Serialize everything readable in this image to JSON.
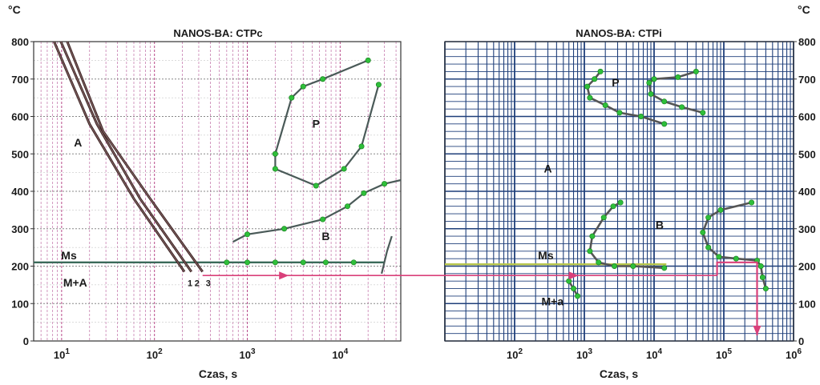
{
  "unit_label": "°C",
  "chart_data": [
    {
      "type": "line",
      "title": "NANOS-BA: CTPc",
      "xlabel": "Czas, s",
      "ylabel": "°C",
      "xscale": "log",
      "xlim": [
        5,
        45000
      ],
      "ylim": [
        0,
        800
      ],
      "x_ticks": [
        {
          "base": "10",
          "exp": "1",
          "v": 10
        },
        {
          "base": "10",
          "exp": "2",
          "v": 100
        },
        {
          "base": "10",
          "exp": "3",
          "v": 1000
        },
        {
          "base": "10",
          "exp": "4",
          "v": 10000
        }
      ],
      "y_ticks": [
        "0",
        "100",
        "200",
        "300",
        "400",
        "500",
        "600",
        "700",
        "800"
      ],
      "grid": true,
      "regions": [
        {
          "label": "A",
          "x": 15,
          "y": 520
        },
        {
          "label": "P",
          "x": 5500,
          "y": 570
        },
        {
          "label": "B",
          "x": 7000,
          "y": 270
        },
        {
          "label": "Ms",
          "x": 12,
          "y": 218
        },
        {
          "label": "M+A",
          "x": 14,
          "y": 145
        }
      ],
      "ms_line": {
        "label": "Ms",
        "y": 210,
        "x_start": 5,
        "x_end": 30000
      },
      "cooling_curves": [
        {
          "name": "1",
          "points": [
            [
              8.3,
              800
            ],
            [
              20,
              580
            ],
            [
              60,
              380
            ],
            [
              210,
              185
            ]
          ]
        },
        {
          "name": "2",
          "points": [
            [
              9.8,
              800
            ],
            [
              24,
              580
            ],
            [
              70,
              380
            ],
            [
              250,
              185
            ]
          ]
        },
        {
          "name": "3",
          "points": [
            [
              11.5,
              800
            ],
            [
              28,
              560
            ],
            [
              90,
              380
            ],
            [
              330,
              185
            ]
          ]
        }
      ],
      "pearlite_curve": [
        [
          20000,
          750
        ],
        [
          6500,
          700
        ],
        [
          4000,
          680
        ],
        [
          3000,
          650
        ],
        [
          2000,
          500
        ],
        [
          2000,
          460
        ],
        [
          5500,
          415
        ],
        [
          11000,
          460
        ],
        [
          17000,
          520
        ],
        [
          26000,
          685
        ]
      ],
      "bainite_curve": [
        [
          700,
          265
        ],
        [
          1000,
          285
        ],
        [
          2500,
          300
        ],
        [
          6500,
          325
        ],
        [
          12000,
          360
        ],
        [
          18000,
          395
        ],
        [
          30000,
          420
        ],
        [
          45000,
          430
        ]
      ],
      "bainite_curve_2": [
        [
          28000,
          180
        ],
        [
          32000,
          240
        ],
        [
          36000,
          280
        ]
      ],
      "ms_points_x": [
        600,
        1000,
        2000,
        4000,
        7000,
        14000
      ],
      "arrow_y": 175
    },
    {
      "type": "line",
      "title": "NANOS-BA: CTPi",
      "xlabel": "Czas, s",
      "ylabel": "°C",
      "xscale": "log",
      "xlim": [
        10,
        1000000
      ],
      "ylim": [
        0,
        800
      ],
      "x_ticks": [
        {
          "base": "10",
          "exp": "2",
          "v": 100
        },
        {
          "base": "10",
          "exp": "3",
          "v": 1000
        },
        {
          "base": "10",
          "exp": "4",
          "v": 10000
        },
        {
          "base": "10",
          "exp": "5",
          "v": 100000
        },
        {
          "base": "10",
          "exp": "6",
          "v": 1000000
        }
      ],
      "y_ticks": [
        "0",
        "100",
        "200",
        "300",
        "400",
        "500",
        "600",
        "700",
        "800"
      ],
      "grid": true,
      "regions": [
        {
          "label": "A",
          "x": 300,
          "y": 450
        },
        {
          "label": "P",
          "x": 2800,
          "y": 680
        },
        {
          "label": "B",
          "x": 12000,
          "y": 300
        },
        {
          "label": "Ms",
          "x": 280,
          "y": 218
        },
        {
          "label": "M+a",
          "x": 350,
          "y": 95
        }
      ],
      "ms_line": {
        "label": "Ms",
        "y": 205,
        "x_start": 10,
        "x_end": 15000
      },
      "pearlite_start": [
        [
          1700,
          720
        ],
        [
          1400,
          700
        ],
        [
          1100,
          680
        ],
        [
          1200,
          650
        ],
        [
          2000,
          630
        ],
        [
          3200,
          610
        ],
        [
          6500,
          600
        ],
        [
          14000,
          580
        ]
      ],
      "pearlite_end": [
        [
          40000,
          720
        ],
        [
          22000,
          705
        ],
        [
          10000,
          700
        ],
        [
          8500,
          690
        ],
        [
          9000,
          660
        ],
        [
          14000,
          640
        ],
        [
          25000,
          625
        ],
        [
          50000,
          610
        ]
      ],
      "bainite_start": [
        [
          3300,
          370
        ],
        [
          2600,
          360
        ],
        [
          1900,
          330
        ],
        [
          1300,
          280
        ],
        [
          1200,
          240
        ],
        [
          1600,
          210
        ],
        [
          2700,
          200
        ],
        [
          5000,
          200
        ],
        [
          14000,
          195
        ]
      ],
      "bainite_end": [
        [
          250000,
          370
        ],
        [
          90000,
          350
        ],
        [
          60000,
          330
        ],
        [
          50000,
          290
        ],
        [
          60000,
          250
        ],
        [
          85000,
          225
        ],
        [
          150000,
          220
        ],
        [
          300000,
          215
        ],
        [
          340000,
          200
        ],
        [
          360000,
          170
        ],
        [
          400000,
          140
        ]
      ],
      "fragment": [
        [
          600,
          160
        ],
        [
          700,
          140
        ],
        [
          800,
          120
        ]
      ],
      "magenta_path": [
        [
          80000,
          175
        ],
        [
          80000,
          210
        ],
        [
          200000,
          210
        ],
        [
          300000,
          210
        ],
        [
          300000,
          180
        ],
        [
          300000,
          15
        ]
      ]
    }
  ]
}
